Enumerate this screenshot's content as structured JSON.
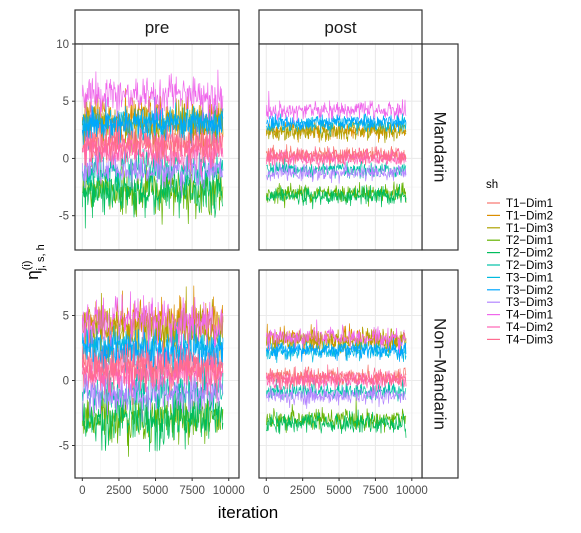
{
  "chart_data": {
    "type": "line",
    "facet_cols": [
      "pre",
      "post"
    ],
    "facet_rows": [
      "Mandarin",
      "Non−Mandarin"
    ],
    "xlabel": "iteration",
    "ylabel_main": "η",
    "ylabel_sup": "(i)",
    "ylabel_sub": "j, s, h",
    "x_ticks": [
      0,
      2500,
      5000,
      7500,
      10000
    ],
    "x_tick_labels": [
      "0",
      "2500",
      "5000",
      "7500",
      "10000"
    ],
    "xlim": [
      -500,
      10700
    ],
    "iterations_range": [
      0,
      9600
    ],
    "panels": [
      {
        "row": "Mandarin",
        "col": "pre",
        "ylim": [
          -8,
          10
        ],
        "y_ticks": [
          -5,
          0,
          5,
          10
        ]
      },
      {
        "row": "Mandarin",
        "col": "post",
        "ylim": [
          -8,
          10
        ],
        "y_ticks": [
          -5,
          0,
          5,
          10
        ]
      },
      {
        "row": "Non−Mandarin",
        "col": "pre",
        "ylim": [
          -7.5,
          8.5
        ],
        "y_ticks": [
          -5,
          0,
          5
        ]
      },
      {
        "row": "Non−Mandarin",
        "col": "post",
        "ylim": [
          -7.5,
          8.5
        ],
        "y_ticks": [
          -5,
          0,
          5
        ]
      }
    ],
    "legend": {
      "title": "sh",
      "position": "right"
    },
    "series": [
      {
        "name": "T1−Dim1",
        "color": "#F8766D",
        "mean": {
          "Mandarin|pre": 1.5,
          "Mandarin|post": 0.3,
          "Non−Mandarin|pre": 1.2,
          "Non−Mandarin|post": 0.3
        },
        "spread": {
          "Mandarin|pre": 0.9,
          "Mandarin|post": 0.35,
          "Non−Mandarin|pre": 0.9,
          "Non−Mandarin|post": 0.35
        }
      },
      {
        "name": "T1−Dim2",
        "color": "#DB8E00",
        "mean": {
          "Mandarin|pre": 3.5,
          "Mandarin|post": 2.5,
          "Non−Mandarin|pre": 4.5,
          "Non−Mandarin|post": 3.2
        },
        "spread": {
          "Mandarin|pre": 0.9,
          "Mandarin|post": 0.4,
          "Non−Mandarin|pre": 1.0,
          "Non−Mandarin|post": 0.45
        }
      },
      {
        "name": "T1−Dim3",
        "color": "#AEA200",
        "mean": {
          "Mandarin|pre": 3.0,
          "Mandarin|post": 2.3,
          "Non−Mandarin|pre": 3.8,
          "Non−Mandarin|post": 3.0
        },
        "spread": {
          "Mandarin|pre": 0.9,
          "Mandarin|post": 0.4,
          "Non−Mandarin|pre": 1.0,
          "Non−Mandarin|post": 0.45
        }
      },
      {
        "name": "T2−Dim1",
        "color": "#64B200",
        "mean": {
          "Mandarin|pre": -2.8,
          "Mandarin|post": -3.0,
          "Non−Mandarin|pre": -2.8,
          "Non−Mandarin|post": -3.0
        },
        "spread": {
          "Mandarin|pre": 1.0,
          "Mandarin|post": 0.4,
          "Non−Mandarin|pre": 1.0,
          "Non−Mandarin|post": 0.4
        }
      },
      {
        "name": "T2−Dim2",
        "color": "#00BD5C",
        "mean": {
          "Mandarin|pre": -3.0,
          "Mandarin|post": -3.3,
          "Non−Mandarin|pre": -3.0,
          "Non−Mandarin|post": -3.3
        },
        "spread": {
          "Mandarin|pre": 1.0,
          "Mandarin|post": 0.4,
          "Non−Mandarin|pre": 1.0,
          "Non−Mandarin|post": 0.4
        }
      },
      {
        "name": "T2−Dim3",
        "color": "#00C1A7",
        "mean": {
          "Mandarin|pre": -1.0,
          "Mandarin|post": -1.0,
          "Non−Mandarin|pre": -0.8,
          "Non−Mandarin|post": -0.8
        },
        "spread": {
          "Mandarin|pre": 0.8,
          "Mandarin|post": 0.35,
          "Non−Mandarin|pre": 0.8,
          "Non−Mandarin|post": 0.35
        }
      },
      {
        "name": "T3−Dim1",
        "color": "#00BADE",
        "mean": {
          "Mandarin|pre": 3.2,
          "Mandarin|post": 3.0,
          "Non−Mandarin|pre": 2.5,
          "Non−Mandarin|post": 2.2
        },
        "spread": {
          "Mandarin|pre": 0.8,
          "Mandarin|post": 0.35,
          "Non−Mandarin|pre": 0.8,
          "Non−Mandarin|post": 0.35
        }
      },
      {
        "name": "T3−Dim2",
        "color": "#00A6FF",
        "mean": {
          "Mandarin|pre": 3.0,
          "Mandarin|post": 3.2,
          "Non−Mandarin|pre": 2.3,
          "Non−Mandarin|post": 2.4
        },
        "spread": {
          "Mandarin|pre": 0.8,
          "Mandarin|post": 0.35,
          "Non−Mandarin|pre": 0.8,
          "Non−Mandarin|post": 0.35
        }
      },
      {
        "name": "T3−Dim3",
        "color": "#B385FF",
        "mean": {
          "Mandarin|pre": -1.0,
          "Mandarin|post": -1.3,
          "Non−Mandarin|pre": -1.0,
          "Non−Mandarin|post": -1.2
        },
        "spread": {
          "Mandarin|pre": 0.8,
          "Mandarin|post": 0.35,
          "Non−Mandarin|pre": 0.8,
          "Non−Mandarin|post": 0.35
        }
      },
      {
        "name": "T4−Dim1",
        "color": "#EF67EB",
        "mean": {
          "Mandarin|pre": 5.5,
          "Mandarin|post": 4.2,
          "Non−Mandarin|pre": 4.5,
          "Non−Mandarin|post": 3.3
        },
        "spread": {
          "Mandarin|pre": 0.9,
          "Mandarin|post": 0.4,
          "Non−Mandarin|pre": 0.9,
          "Non−Mandarin|post": 0.4
        }
      },
      {
        "name": "T4−Dim2",
        "color": "#FF63B6",
        "mean": {
          "Mandarin|pre": 0.5,
          "Mandarin|post": 0.0,
          "Non−Mandarin|pre": 0.5,
          "Non−Mandarin|post": 0.0
        },
        "spread": {
          "Mandarin|pre": 0.8,
          "Mandarin|post": 0.35,
          "Non−Mandarin|pre": 0.8,
          "Non−Mandarin|post": 0.35
        }
      },
      {
        "name": "T4−Dim3",
        "color": "#FF6C91",
        "mean": {
          "Mandarin|pre": 1.2,
          "Mandarin|post": 0.2,
          "Non−Mandarin|pre": 1.0,
          "Non−Mandarin|post": 0.2
        },
        "spread": {
          "Mandarin|pre": 0.8,
          "Mandarin|post": 0.35,
          "Non−Mandarin|pre": 0.8,
          "Non−Mandarin|post": 0.35
        }
      }
    ]
  }
}
